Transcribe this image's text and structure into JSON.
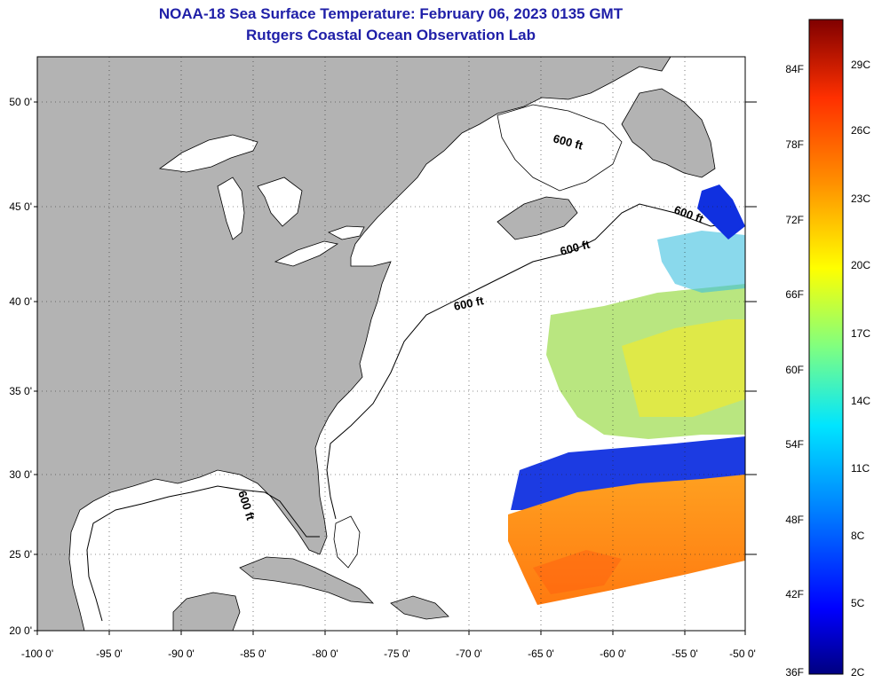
{
  "title": "NOAA-18 Sea Surface Temperature:  February 06, 2023 0135 GMT",
  "subtitle": "Rutgers Coastal Ocean Observation Lab",
  "lat_labels": [
    "50 0'",
    "45 0'",
    "40 0'",
    "35 0'",
    "30 0'",
    "25 0'",
    "20 0'"
  ],
  "lon_labels": [
    "-100 0'",
    "-95 0'",
    "-90 0'",
    "-85 0'",
    "-80 0'",
    "-75 0'",
    "-70 0'",
    "-65 0'",
    "-60 0'",
    "-55 0'",
    "-50 0'"
  ],
  "contour_labels": [
    "600 ft",
    "600 ft",
    "600 ft",
    "600 ft",
    "600 ft"
  ],
  "colorbar": {
    "f_labels": [
      "84F",
      "78F",
      "72F",
      "66F",
      "60F",
      "54F",
      "48F",
      "42F",
      "36F"
    ],
    "c_labels": [
      "29C",
      "26C",
      "23C",
      "20C",
      "17C",
      "14C",
      "11C",
      "8C",
      "5C",
      "2C"
    ],
    "colors": [
      "#000080",
      "#0000ff",
      "#0080ff",
      "#00e5ff",
      "#80ff80",
      "#ffff00",
      "#ff9000",
      "#ff3000",
      "#b00000",
      "#800000"
    ]
  },
  "colors": {
    "land": "#b3b3b3",
    "ocean": "#ffffff",
    "title": "#1f1fa8"
  }
}
